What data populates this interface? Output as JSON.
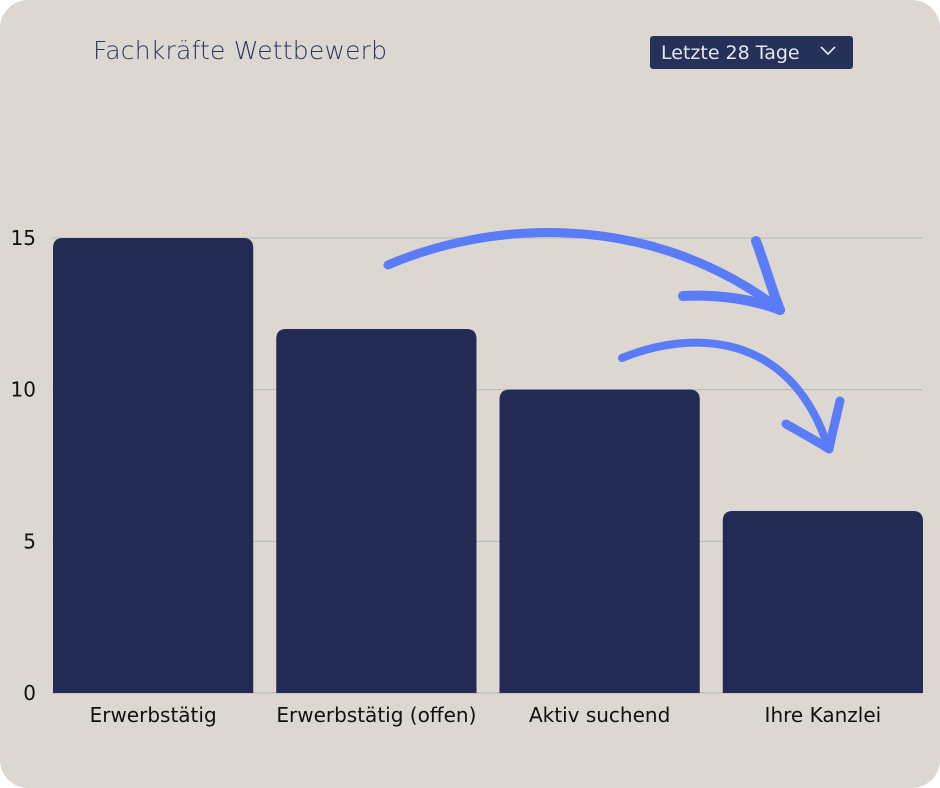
{
  "header": {
    "title": "Fachkräfte Wettbewerb"
  },
  "filter": {
    "selected": "Letzte 28 Tage",
    "icon": "chevron-down-icon"
  },
  "colors": {
    "background": "#dcd7d1",
    "bar": "#232a54",
    "arrow": "#5b7cf7",
    "grid": "#b9b5b0"
  },
  "chart_data": {
    "type": "bar",
    "title": "Fachkräfte Wettbewerb",
    "categories": [
      "Erwerbstätig",
      "Erwerbstätig (offen)",
      "Aktiv suchend",
      "Ihre Kanzlei"
    ],
    "values": [
      15,
      12,
      10,
      6
    ],
    "yticks": [
      0,
      5,
      10,
      15
    ],
    "ylim": [
      0,
      15
    ],
    "grid": true,
    "xlabel": "",
    "ylabel": "",
    "annotations": [
      "arrow from Erwerbstätig (offen) toward Ihre Kanzlei",
      "arrow from Aktiv suchend toward Ihre Kanzlei"
    ]
  }
}
